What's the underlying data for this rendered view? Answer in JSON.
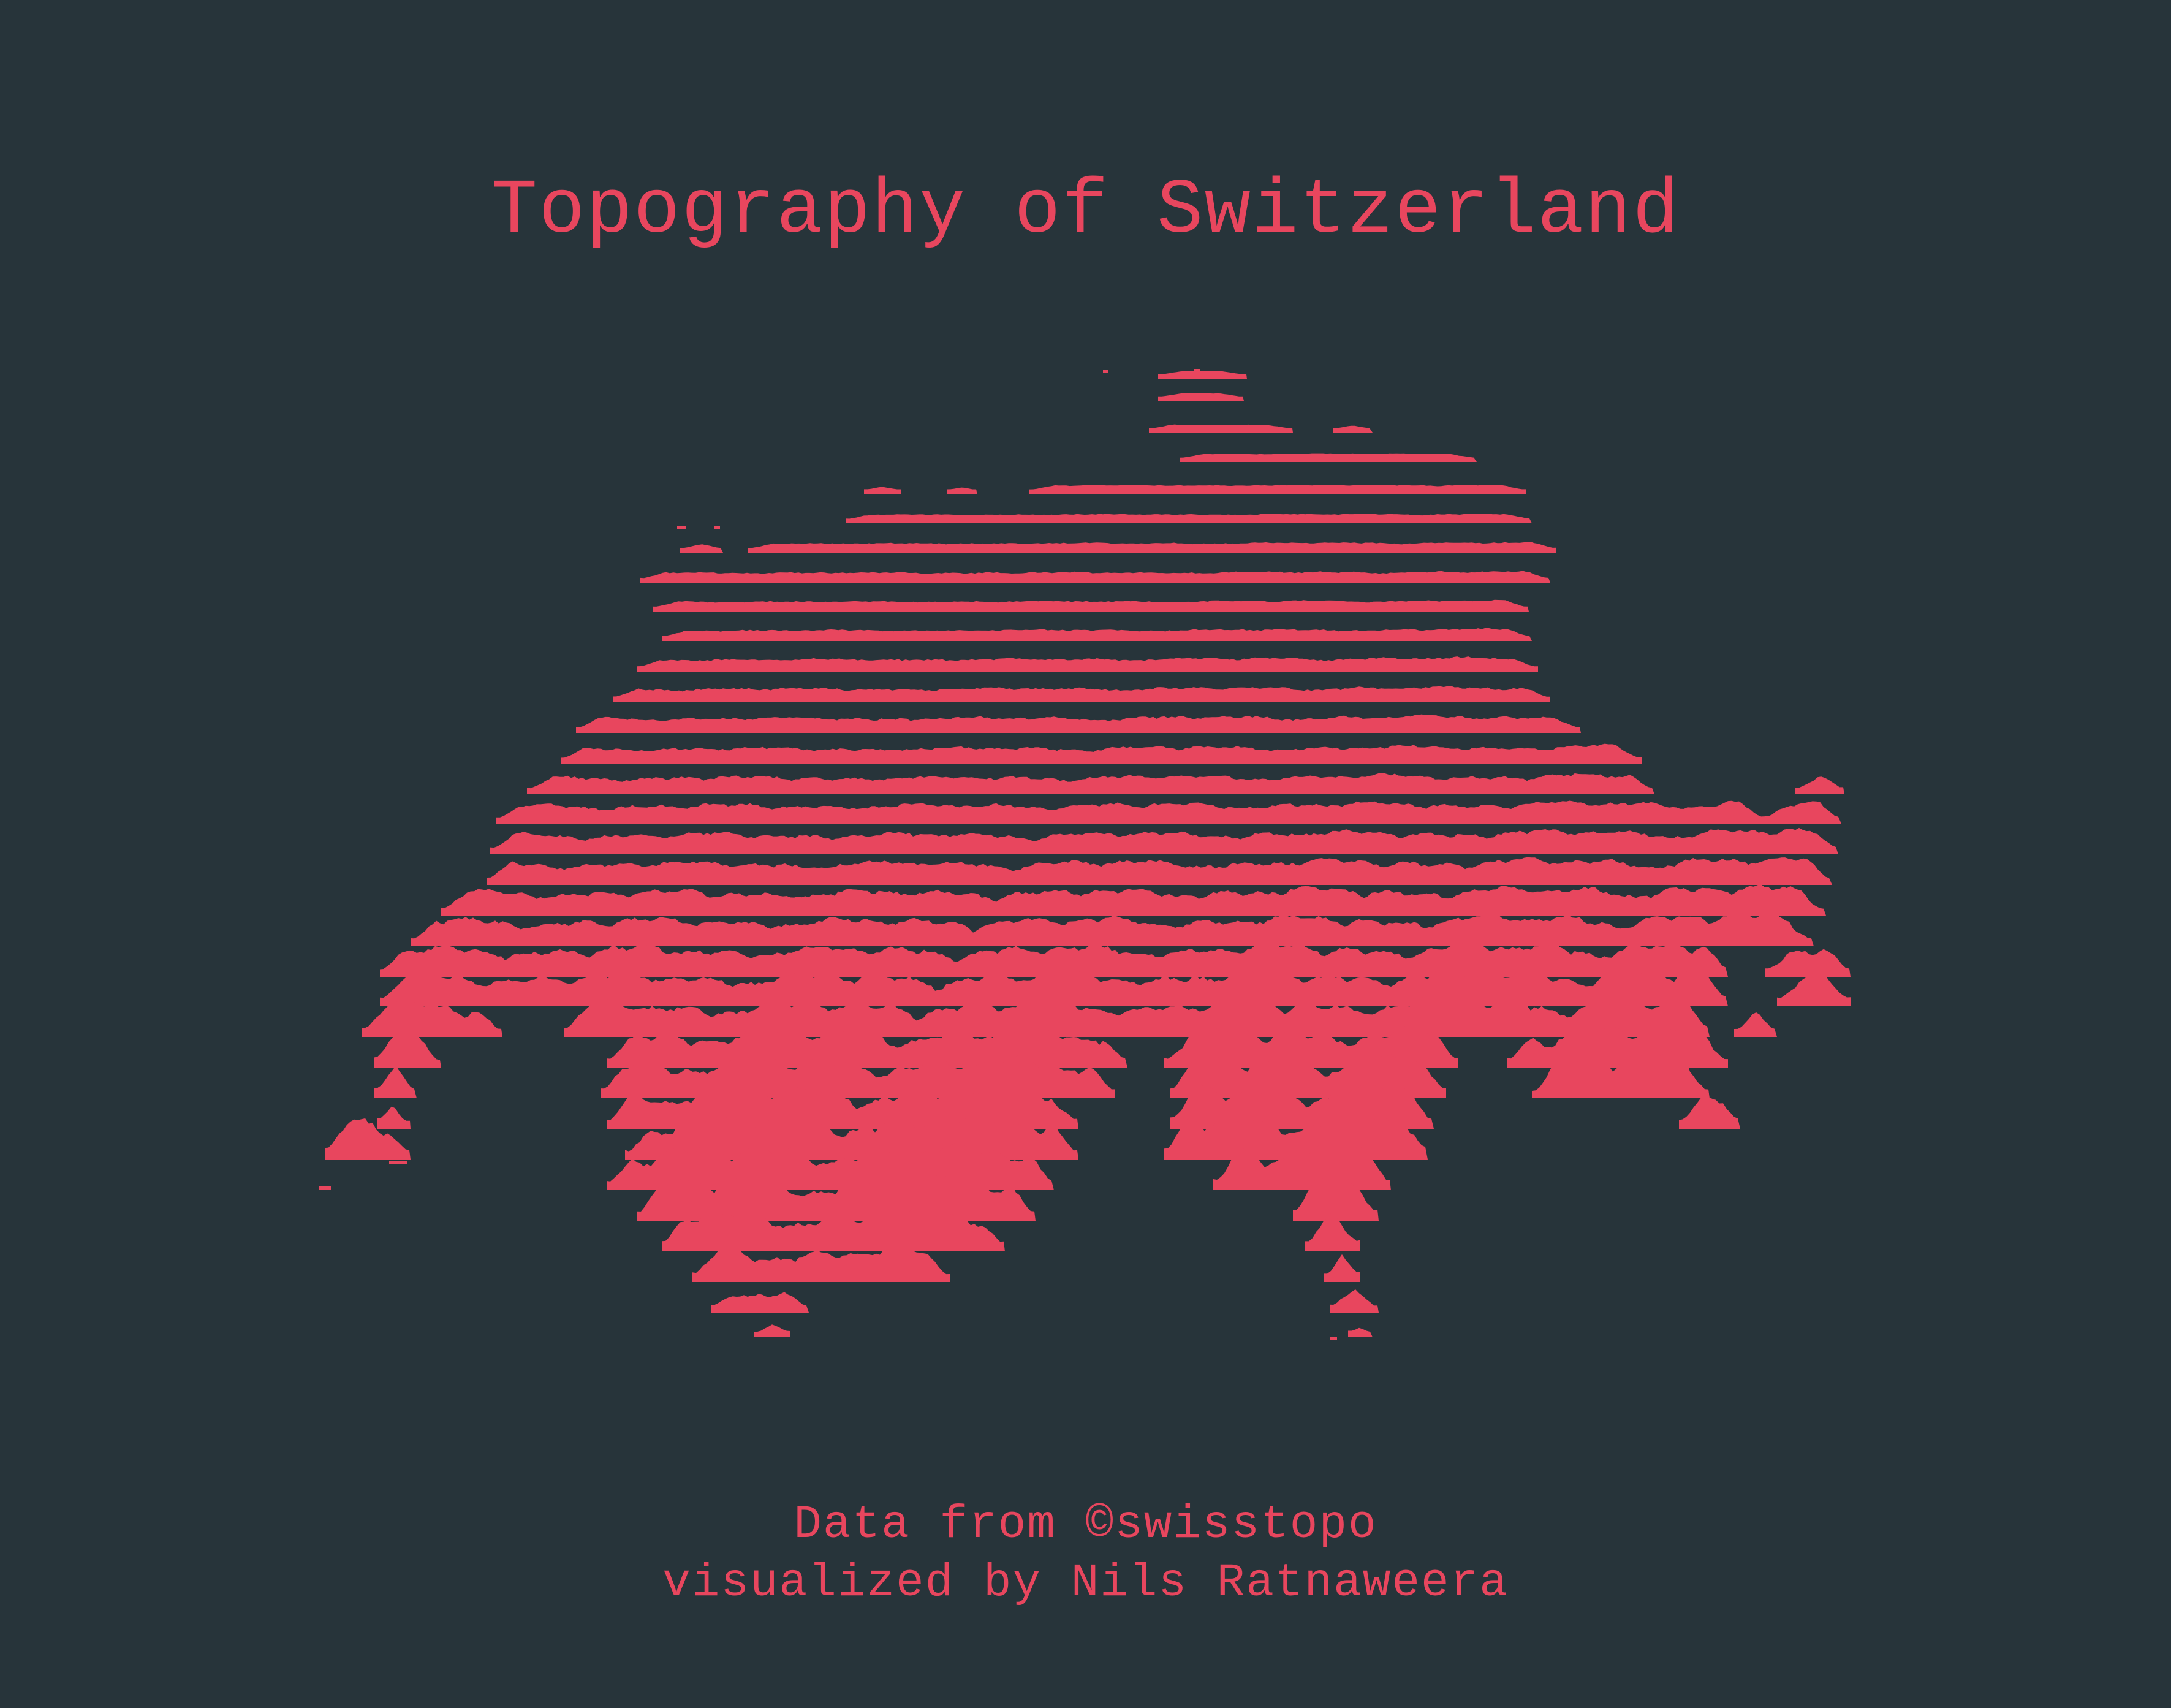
{
  "title": "Topography of Switzerland",
  "credits": {
    "source": "Data from ©swisstopo",
    "author": "visualized by Nils Ratnaweera"
  },
  "colors": {
    "background": "#27343a",
    "accent": "#e8465e"
  },
  "map_style": "ridgeline (joy plot) elevation profiles along latitude lines"
}
